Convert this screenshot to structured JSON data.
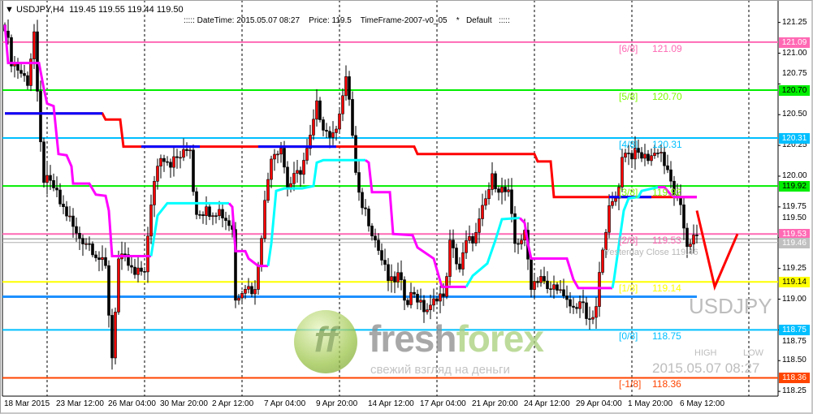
{
  "header": {
    "symbol_line": "USDJPY,H4  119.45 119.55 119.44 119.50",
    "info_line": "::::: DateTime: 2015.05.07 08:27    Price: 119.5    TimeFrame-2007-v0_05    *   Default   :::::"
  },
  "watermark": {
    "symbol": "USDJPY",
    "high": "HIGH",
    "low": "LOW",
    "datetime": "2015.05.07 08:27",
    "yesterday_close": "Yesterday Close 119.46"
  },
  "logo": {
    "mark": "ff",
    "brand_a": "fresh",
    "brand_b": "forex",
    "tagline": "свежий взгляд на деньги"
  },
  "levels": [
    {
      "tag": "[6/8]",
      "value": "121.09",
      "price": 121.09,
      "color": "#ff69b4",
      "text": "#ffffff"
    },
    {
      "tag": "[5/8]",
      "value": "120.70",
      "price": 120.7,
      "color": "#00ee00",
      "text": "#000000"
    },
    {
      "tag": "[4/8]",
      "value": "120.31",
      "price": 120.31,
      "color": "#00bfff",
      "text": "#ffffff"
    },
    {
      "tag": "[3/8]",
      "value": "119.92",
      "price": 119.92,
      "color": "#00ee00",
      "text": "#000000"
    },
    {
      "tag": "[2/8]",
      "value": "119.53",
      "price": 119.53,
      "color": "#ff69b4",
      "text": "#ffffff"
    },
    {
      "tag": "",
      "value": "119.46",
      "price": 119.46,
      "color": "#c0c0c0",
      "text": "#ffffff"
    },
    {
      "tag": "[1/8]",
      "value": "119.14",
      "price": 119.14,
      "color": "#ffff00",
      "text": "#000000"
    },
    {
      "tag": "[0/8]",
      "value": "118.75",
      "price": 118.75,
      "color": "#00bfff",
      "text": "#ffffff"
    },
    {
      "tag": "[-1/8]",
      "value": "118.36",
      "price": 118.36,
      "color": "#ff4500",
      "text": "#ffffff"
    }
  ],
  "chart_data": {
    "type": "candlestick",
    "symbol": "USDJPY",
    "timeframe": "H4",
    "ylim": [
      118.2,
      121.3
    ],
    "y_ticks": [
      "121.25",
      "121.00",
      "120.75",
      "120.50",
      "120.25",
      "120.00",
      "119.75",
      "119.50",
      "119.25",
      "119.00",
      "118.75",
      "118.50",
      "118.25"
    ],
    "x_ticks": [
      "18 Mar 2015",
      "23 Mar 12:00",
      "26 Mar 04:00",
      "30 Mar 20:00",
      "2 Apr 12:00",
      "7 Apr 04:00",
      "9 Apr 20:00",
      "14 Apr 12:00",
      "17 Apr 04:00",
      "21 Apr 20:00",
      "24 Apr 12:00",
      "29 Apr 04:00",
      "1 May 20:00",
      "6 May 12:00"
    ],
    "bars": 214,
    "close_path": [
      [
        0,
        121.23
      ],
      [
        2,
        120.94
      ],
      [
        5,
        120.84
      ],
      [
        7,
        120.77
      ],
      [
        9,
        121.17
      ],
      [
        10.5,
        120.38
      ],
      [
        12,
        119.98
      ],
      [
        15,
        119.91
      ],
      [
        17,
        119.78
      ],
      [
        20,
        119.65
      ],
      [
        22,
        119.52
      ],
      [
        26,
        119.45
      ],
      [
        31,
        119.25
      ],
      [
        33,
        118.53
      ],
      [
        35,
        119.32
      ],
      [
        37,
        119.32
      ],
      [
        40,
        119.19
      ],
      [
        43,
        119.25
      ],
      [
        46,
        119.98
      ],
      [
        48,
        120.18
      ],
      [
        51,
        120.11
      ],
      [
        55,
        120.18
      ],
      [
        57,
        120.24
      ],
      [
        58.5,
        119.72
      ],
      [
        62,
        119.72
      ],
      [
        66,
        119.72
      ],
      [
        70,
        119.58
      ],
      [
        71,
        118.99
      ],
      [
        73.5,
        119.12
      ],
      [
        77,
        119.06
      ],
      [
        80,
        119.78
      ],
      [
        82,
        120.18
      ],
      [
        85,
        120.24
      ],
      [
        87,
        119.91
      ],
      [
        91,
        120.05
      ],
      [
        93.5,
        120.24
      ],
      [
        96,
        120.57
      ],
      [
        98.5,
        120.38
      ],
      [
        101,
        120.31
      ],
      [
        105,
        120.77
      ],
      [
        106,
        120.64
      ],
      [
        108.5,
        119.85
      ],
      [
        111,
        119.72
      ],
      [
        113.5,
        119.52
      ],
      [
        116,
        119.32
      ],
      [
        118.5,
        119.12
      ],
      [
        121,
        119.19
      ],
      [
        123.5,
        118.99
      ],
      [
        126,
        119.06
      ],
      [
        128.5,
        118.92
      ],
      [
        131,
        118.92
      ],
      [
        133.5,
        119.06
      ],
      [
        135,
        118.99
      ],
      [
        137,
        119.45
      ],
      [
        140,
        119.25
      ],
      [
        142,
        119.45
      ],
      [
        145,
        119.52
      ],
      [
        147,
        119.72
      ],
      [
        150,
        119.98
      ],
      [
        152,
        119.91
      ],
      [
        155,
        119.85
      ],
      [
        157,
        119.45
      ],
      [
        160,
        119.52
      ],
      [
        162,
        119.12
      ],
      [
        165,
        119.19
      ],
      [
        167,
        119.06
      ],
      [
        170,
        119.12
      ],
      [
        172,
        118.99
      ],
      [
        175,
        118.92
      ],
      [
        177,
        118.99
      ],
      [
        180,
        118.79
      ],
      [
        182,
        118.92
      ],
      [
        184,
        119.45
      ],
      [
        186,
        119.72
      ],
      [
        188.5,
        119.85
      ],
      [
        190.5,
        120.24
      ],
      [
        192,
        120.18
      ],
      [
        195,
        120.18
      ],
      [
        197,
        120.15
      ],
      [
        200,
        120.18
      ],
      [
        201.5,
        120.24
      ],
      [
        203.5,
        120.05
      ],
      [
        205.5,
        119.91
      ],
      [
        208,
        119.72
      ],
      [
        210,
        119.45
      ],
      [
        211.5,
        119.49
      ]
    ],
    "step_line": {
      "color": "#ff0000",
      "alt_color": "#0000ff",
      "points": [
        [
          0,
          120.51
        ],
        [
          30,
          120.51
        ],
        [
          31,
          120.46
        ],
        [
          35.5,
          120.46
        ],
        [
          36.5,
          120.24
        ],
        [
          126,
          120.24
        ],
        [
          127,
          120.18
        ],
        [
          163,
          120.18
        ],
        [
          164,
          120.12
        ],
        [
          168,
          120.12
        ],
        [
          169,
          119.83
        ],
        [
          213,
          119.83
        ]
      ],
      "alt_ranges": [
        [
          0,
          30,
          120.51
        ],
        [
          42,
          60,
          120.24
        ],
        [
          78,
          102,
          120.24
        ],
        [
          186,
          199,
          119.83
        ]
      ]
    },
    "trend_line": [
      {
        "color": "#ff00ff",
        "points": [
          [
            0,
            121.23
          ],
          [
            1,
            120.92
          ],
          [
            10.5,
            120.92
          ],
          [
            12,
            120.71
          ],
          [
            13,
            120.59
          ],
          [
            15,
            120.57
          ],
          [
            16.5,
            120.18
          ],
          [
            19,
            120.17
          ],
          [
            20.5,
            120.08
          ],
          [
            21,
            119.94
          ],
          [
            26,
            119.94
          ],
          [
            28,
            119.85
          ],
          [
            31,
            119.84
          ],
          [
            32,
            119.72
          ],
          [
            33,
            119.35
          ],
          [
            45,
            119.35
          ]
        ]
      },
      {
        "color": "#00ffff",
        "points": [
          [
            45,
            119.35
          ],
          [
            47,
            119.68
          ],
          [
            50,
            119.78
          ],
          [
            69,
            119.78
          ]
        ]
      },
      {
        "color": "#ff00ff",
        "points": [
          [
            69,
            119.78
          ],
          [
            70,
            119.75
          ],
          [
            71,
            119.39
          ],
          [
            74,
            119.39
          ],
          [
            75,
            119.33
          ],
          [
            78,
            119.27
          ],
          [
            81,
            119.27
          ]
        ]
      },
      {
        "color": "#00ffff",
        "points": [
          [
            81,
            119.27
          ],
          [
            82,
            119.45
          ],
          [
            83.5,
            119.88
          ],
          [
            86,
            119.9
          ],
          [
            91.5,
            119.9
          ],
          [
            95,
            119.92
          ],
          [
            96,
            120.11
          ],
          [
            98,
            120.13
          ],
          [
            111,
            120.13
          ]
        ]
      },
      {
        "color": "#ff00ff",
        "points": [
          [
            111,
            120.13
          ],
          [
            112,
            120.11
          ],
          [
            113,
            119.87
          ],
          [
            118.5,
            119.87
          ],
          [
            119.5,
            119.53
          ],
          [
            125.5,
            119.52
          ],
          [
            127,
            119.42
          ],
          [
            132,
            119.33
          ],
          [
            134.5,
            119.1
          ],
          [
            142,
            119.1
          ]
        ]
      },
      {
        "color": "#00ffff",
        "points": [
          [
            142,
            119.1
          ],
          [
            144,
            119.19
          ],
          [
            148.5,
            119.29
          ],
          [
            151,
            119.48
          ],
          [
            153,
            119.65
          ],
          [
            158.5,
            119.66
          ]
        ]
      },
      {
        "color": "#ff00ff",
        "points": [
          [
            158.5,
            119.66
          ],
          [
            160,
            119.62
          ],
          [
            161,
            119.45
          ],
          [
            162,
            119.33
          ],
          [
            173,
            119.33
          ],
          [
            175,
            119.16
          ],
          [
            176.5,
            119.09
          ],
          [
            187,
            119.09
          ]
        ]
      },
      {
        "color": "#00ffff",
        "points": [
          [
            187,
            119.09
          ],
          [
            187.5,
            119.16
          ],
          [
            190.5,
            119.72
          ],
          [
            192,
            119.82
          ],
          [
            195,
            119.83
          ],
          [
            196,
            119.88
          ],
          [
            201,
            119.91
          ]
        ]
      },
      {
        "color": "#ff00ff",
        "points": [
          [
            201,
            119.91
          ],
          [
            203,
            119.91
          ],
          [
            205,
            119.85
          ],
          [
            206,
            119.83
          ],
          [
            213,
            119.83
          ]
        ]
      }
    ],
    "support_line": {
      "price": 119.02,
      "color": "#1e90ff"
    },
    "forecast_path": [
      [
        213,
        119.72
      ],
      [
        218.5,
        119.1
      ],
      [
        225.5,
        119.53
      ]
    ]
  }
}
